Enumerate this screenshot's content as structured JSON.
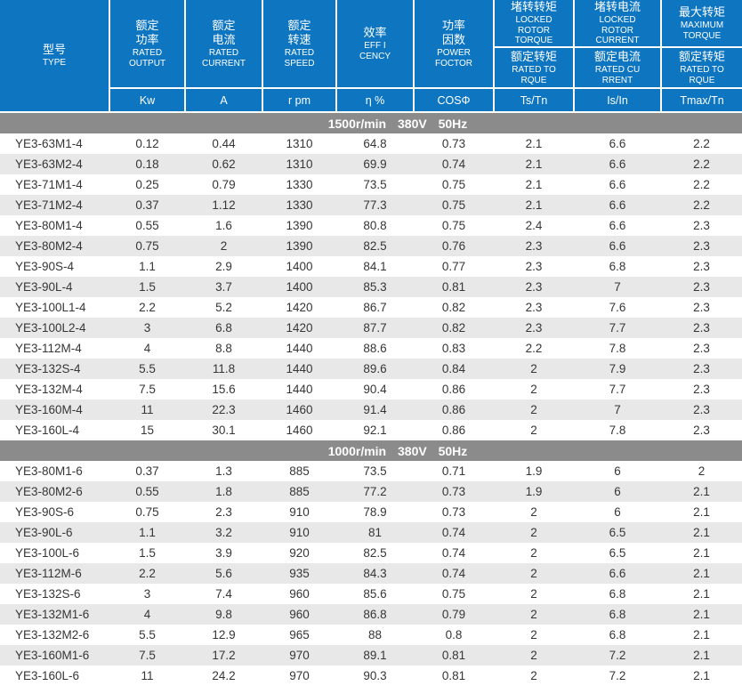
{
  "table": {
    "header": {
      "type_col": {
        "zh": "型号",
        "en": "TYPE"
      },
      "simple_cols": [
        {
          "zh": "额定\n功率",
          "en": "RATED\nOUTPUT",
          "unit": "Kw"
        },
        {
          "zh": "额定\n电流",
          "en": "RATED\nCURRENT",
          "unit": "A"
        },
        {
          "zh": "额定\n转速",
          "en": "RATED\nSPEED",
          "unit": "r pm"
        },
        {
          "zh": "效率",
          "en": "EFF I\nCENCY",
          "unit": "η %"
        },
        {
          "zh": "功率\n因数",
          "en": "POWER\nFOCTOR",
          "unit": "COSΦ"
        }
      ],
      "split_cols": [
        {
          "top_zh": "堵转转矩",
          "top_en": "LOCKED\nROTOR\nTORQUE",
          "bot_zh": "额定转矩",
          "bot_en": "RATED TO\nRQUE",
          "unit": "Ts/Tn"
        },
        {
          "top_zh": "堵转电流",
          "top_en": "LOCKED\nROTOR\nCURRENT",
          "bot_zh": "额定电流",
          "bot_en": "RATED CU\nRRENT",
          "unit": "Is/In"
        },
        {
          "top_zh": "最大转矩",
          "top_en": "MAXIMUM\nTORQUE",
          "bot_zh": "额定转矩",
          "bot_en": "RATED TO\nRQUE",
          "unit": "Tmax/Tn"
        }
      ]
    },
    "sections": [
      {
        "label": "1500r/min 380V 50Hz",
        "rows": [
          [
            "YE3-63M1-4",
            "0.12",
            "0.44",
            "1310",
            "64.8",
            "0.73",
            "2.1",
            "6.6",
            "2.2"
          ],
          [
            "YE3-63M2-4",
            "0.18",
            "0.62",
            "1310",
            "69.9",
            "0.74",
            "2.1",
            "6.6",
            "2.2"
          ],
          [
            "YE3-71M1-4",
            "0.25",
            "0.79",
            "1330",
            "73.5",
            "0.75",
            "2.1",
            "6.6",
            "2.2"
          ],
          [
            "YE3-71M2-4",
            "0.37",
            "1.12",
            "1330",
            "77.3",
            "0.75",
            "2.1",
            "6.6",
            "2.2"
          ],
          [
            "YE3-80M1-4",
            "0.55",
            "1.6",
            "1390",
            "80.8",
            "0.75",
            "2.4",
            "6.6",
            "2.3"
          ],
          [
            "YE3-80M2-4",
            "0.75",
            "2",
            "1390",
            "82.5",
            "0.76",
            "2.3",
            "6.6",
            "2.3"
          ],
          [
            "YE3-90S-4",
            "1.1",
            "2.9",
            "1400",
            "84.1",
            "0.77",
            "2.3",
            "6.8",
            "2.3"
          ],
          [
            "YE3-90L-4",
            "1.5",
            "3.7",
            "1400",
            "85.3",
            "0.81",
            "2.3",
            "7",
            "2.3"
          ],
          [
            "YE3-100L1-4",
            "2.2",
            "5.2",
            "1420",
            "86.7",
            "0.82",
            "2.3",
            "7.6",
            "2.3"
          ],
          [
            "YE3-100L2-4",
            "3",
            "6.8",
            "1420",
            "87.7",
            "0.82",
            "2.3",
            "7.7",
            "2.3"
          ],
          [
            "YE3-112M-4",
            "4",
            "8.8",
            "1440",
            "88.6",
            "0.83",
            "2.2",
            "7.8",
            "2.3"
          ],
          [
            "YE3-132S-4",
            "5.5",
            "11.8",
            "1440",
            "89.6",
            "0.84",
            "2",
            "7.9",
            "2.3"
          ],
          [
            "YE3-132M-4",
            "7.5",
            "15.6",
            "1440",
            "90.4",
            "0.86",
            "2",
            "7.7",
            "2.3"
          ],
          [
            "YE3-160M-4",
            "11",
            "22.3",
            "1460",
            "91.4",
            "0.86",
            "2",
            "7",
            "2.3"
          ],
          [
            "YE3-160L-4",
            "15",
            "30.1",
            "1460",
            "92.1",
            "0.86",
            "2",
            "7.8",
            "2.3"
          ]
        ]
      },
      {
        "label": "1000r/min 380V 50Hz",
        "rows": [
          [
            "YE3-80M1-6",
            "0.37",
            "1.3",
            "885",
            "73.5",
            "0.71",
            "1.9",
            "6",
            "2"
          ],
          [
            "YE3-80M2-6",
            "0.55",
            "1.8",
            "885",
            "77.2",
            "0.73",
            "1.9",
            "6",
            "2.1"
          ],
          [
            "YE3-90S-6",
            "0.75",
            "2.3",
            "910",
            "78.9",
            "0.73",
            "2",
            "6",
            "2.1"
          ],
          [
            "YE3-90L-6",
            "1.1",
            "3.2",
            "910",
            "81",
            "0.74",
            "2",
            "6.5",
            "2.1"
          ],
          [
            "YE3-100L-6",
            "1.5",
            "3.9",
            "920",
            "82.5",
            "0.74",
            "2",
            "6.5",
            "2.1"
          ],
          [
            "YE3-112M-6",
            "2.2",
            "5.6",
            "935",
            "84.3",
            "0.74",
            "2",
            "6.6",
            "2.1"
          ],
          [
            "YE3-132S-6",
            "3",
            "7.4",
            "960",
            "85.6",
            "0.75",
            "2",
            "6.8",
            "2.1"
          ],
          [
            "YE3-132M1-6",
            "4",
            "9.8",
            "960",
            "86.8",
            "0.79",
            "2",
            "6.8",
            "2.1"
          ],
          [
            "YE3-132M2-6",
            "5.5",
            "12.9",
            "965",
            "88",
            "0.8",
            "2",
            "6.8",
            "2.1"
          ],
          [
            "YE3-160M1-6",
            "7.5",
            "17.2",
            "970",
            "89.1",
            "0.81",
            "2",
            "7.2",
            "2.1"
          ],
          [
            "YE3-160L-6",
            "11",
            "24.2",
            "970",
            "90.3",
            "0.81",
            "2",
            "7.2",
            "2.1"
          ]
        ]
      }
    ]
  },
  "colors": {
    "header_blue": "#0e76c1",
    "band_gray": "#8b8b8b",
    "row_alt_gray": "#e8e8e8"
  }
}
